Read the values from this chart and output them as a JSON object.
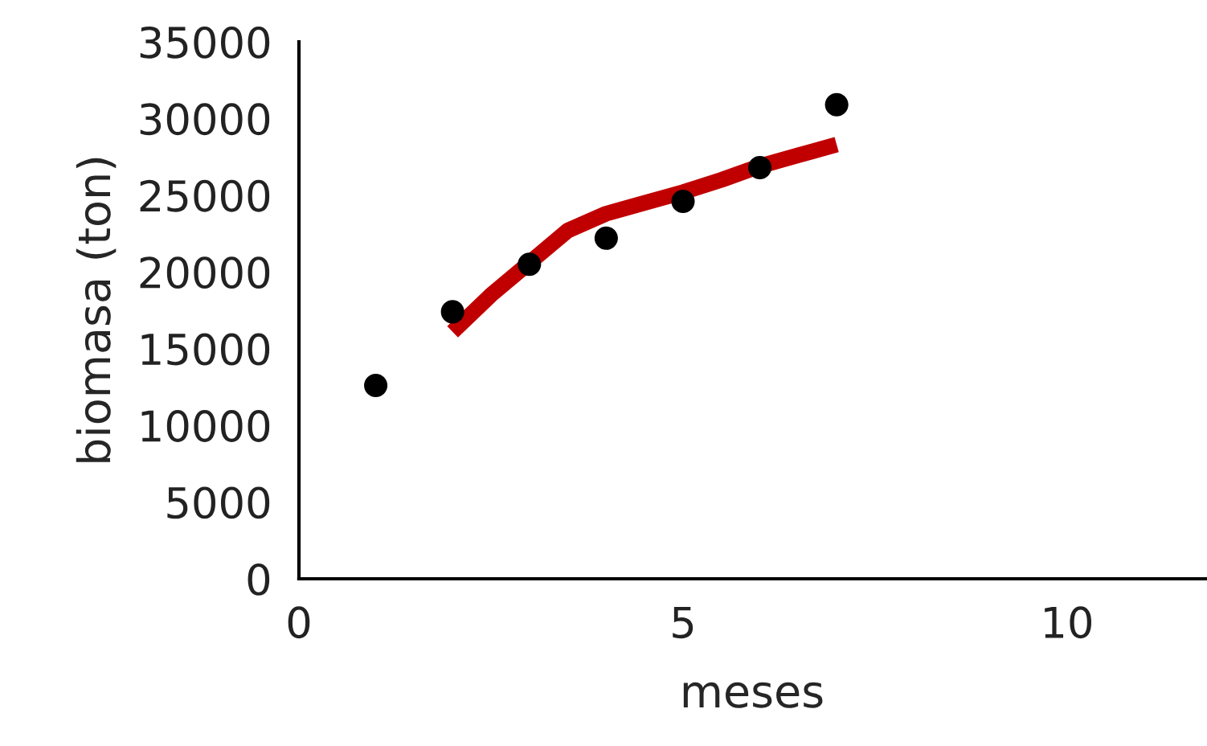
{
  "chart_data": {
    "type": "scatter",
    "xlabel": "meses",
    "ylabel": "biomasa (ton)",
    "xlim": [
      0,
      11.8
    ],
    "xticks": [
      0,
      5,
      10
    ],
    "ylim": [
      0,
      35000
    ],
    "yticks": [
      0,
      5000,
      10000,
      15000,
      20000,
      25000,
      30000,
      35000
    ],
    "grid": false,
    "legend": false,
    "marker": "circle",
    "series": [
      {
        "color": "#000000",
        "x": [
          1,
          2,
          3,
          4,
          5,
          6,
          7
        ],
        "values": [
          12600,
          17400,
          20500,
          22200,
          24600,
          26800,
          30900
        ]
      },
      {
        "type": "line",
        "color": "#c00000",
        "line_style": "solid",
        "marker": "none",
        "x": [
          2,
          2.5,
          3,
          3.5,
          4,
          4.5,
          5,
          5.5,
          6,
          6.5,
          7
        ],
        "values": [
          16100,
          18500,
          20600,
          22700,
          23800,
          24500,
          25200,
          26000,
          26900,
          27600,
          28300
        ]
      }
    ]
  }
}
